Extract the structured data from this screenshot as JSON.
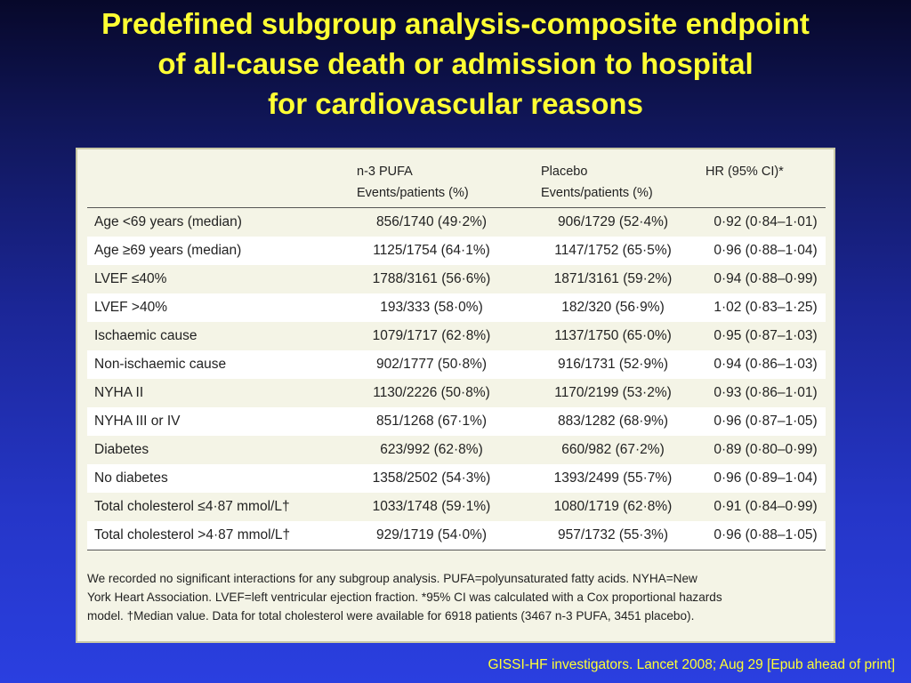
{
  "slide": {
    "title_lines": [
      "Predefined subgroup analysis-composite endpoint",
      "of all-cause death or admission to hospital",
      "for cardiovascular reasons"
    ],
    "citation": "GISSI-HF investigators. Lancet 2008; Aug 29 [Epub ahead of print]"
  },
  "table": {
    "headers": {
      "pufa_line1": "n-3 PUFA",
      "pufa_line2": "Events/patients (%)",
      "placebo_line1": "Placebo",
      "placebo_line2": "Events/patients (%)",
      "hr": "HR (95% CI)*"
    },
    "rows": [
      {
        "subgroup": "Age <69 years (median)",
        "pufa": "856/1740 (49·2%)",
        "placebo": "906/1729 (52·4%)",
        "hr": "0·92 (0·84–1·01)"
      },
      {
        "subgroup": "Age ≥69 years (median)",
        "pufa": "1125/1754 (64·1%)",
        "placebo": "1147/1752 (65·5%)",
        "hr": "0·96 (0·88–1·04)"
      },
      {
        "subgroup": "LVEF ≤40%",
        "pufa": "1788/3161 (56·6%)",
        "placebo": "1871/3161 (59·2%)",
        "hr": "0·94 (0·88–0·99)"
      },
      {
        "subgroup": "LVEF >40%",
        "pufa": "193/333 (58·0%)",
        "placebo": "182/320 (56·9%)",
        "hr": "1·02 (0·83–1·25)"
      },
      {
        "subgroup": "Ischaemic cause",
        "pufa": "1079/1717 (62·8%)",
        "placebo": "1137/1750 (65·0%)",
        "hr": "0·95 (0·87–1·03)"
      },
      {
        "subgroup": "Non-ischaemic cause",
        "pufa": "902/1777 (50·8%)",
        "placebo": "916/1731 (52·9%)",
        "hr": "0·94 (0·86–1·03)"
      },
      {
        "subgroup": "NYHA II",
        "pufa": "1130/2226 (50·8%)",
        "placebo": "1170/2199 (53·2%)",
        "hr": "0·93 (0·86–1·01)"
      },
      {
        "subgroup": "NYHA III or IV",
        "pufa": "851/1268 (67·1%)",
        "placebo": "883/1282 (68·9%)",
        "hr": "0·96 (0·87–1·05)"
      },
      {
        "subgroup": "Diabetes",
        "pufa": "623/992 (62·8%)",
        "placebo": "660/982 (67·2%)",
        "hr": "0·89 (0·80–0·99)"
      },
      {
        "subgroup": "No diabetes",
        "pufa": "1358/2502 (54·3%)",
        "placebo": "1393/2499 (55·7%)",
        "hr": "0·96 (0·89–1·04)"
      },
      {
        "subgroup": "Total cholesterol ≤4·87 mmol/L†",
        "pufa": "1033/1748 (59·1%)",
        "placebo": "1080/1719 (62·8%)",
        "hr": "0·91 (0·84–0·99)"
      },
      {
        "subgroup": "Total cholesterol >4·87 mmol/L†",
        "pufa": "929/1719 (54·0%)",
        "placebo": "957/1732 (55·3%)",
        "hr": "0·96 (0·88–1·05)"
      }
    ],
    "footnote_lines": [
      "We recorded no significant interactions for any subgroup analysis. PUFA=polyunsaturated fatty acids. NYHA=New",
      "York Heart Association. LVEF=left ventricular ejection fraction. *95% CI was calculated with a Cox proportional hazards",
      "model. †Median value. Data for total cholesterol were available for 6918 patients (3467 n-3 PUFA, 3451 placebo)."
    ]
  },
  "colors": {
    "title": "#ffff33",
    "citation": "#ffff33",
    "panel_background": "#f4f4e6",
    "row_alt_background": "#ffffff"
  }
}
